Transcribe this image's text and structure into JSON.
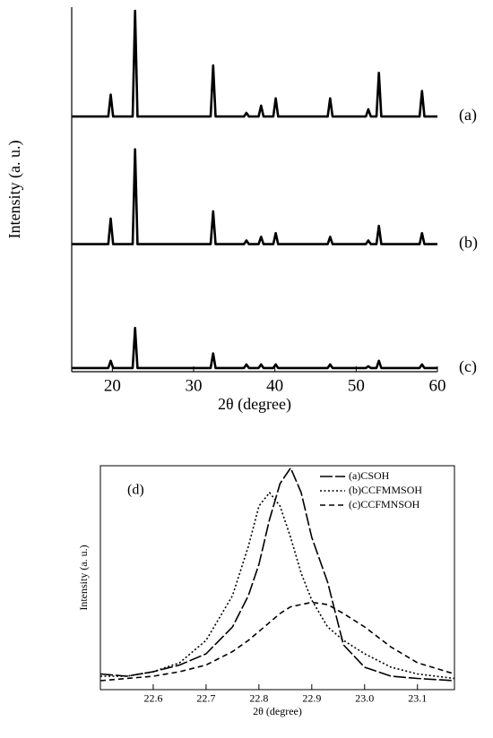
{
  "chart_data": [
    {
      "type": "line",
      "x_label": "2θ (degree)",
      "y_label": "Intensity (a. u.)",
      "x": [
        15,
        19.5,
        19.8,
        20.1,
        22.5,
        22.8,
        23.1,
        32.1,
        32.4,
        32.7,
        36.2,
        36.5,
        36.8,
        38.0,
        38.3,
        38.6,
        39.8,
        40.1,
        40.4,
        46.5,
        46.8,
        47.1,
        51.2,
        51.5,
        51.8,
        52.5,
        52.8,
        53.1,
        57.8,
        58.1,
        58.4,
        60
      ],
      "series": [
        {
          "name": "(a)",
          "color": "#000000",
          "values": [
            70,
            70,
            76,
            70,
            70,
            99,
            70,
            70,
            84,
            70,
            70,
            71,
            70,
            70,
            73,
            70,
            70,
            75,
            70,
            70,
            75,
            70,
            70,
            72,
            70,
            70,
            82,
            70,
            70,
            77,
            70,
            70
          ]
        },
        {
          "name": "(b)",
          "color": "#000000",
          "values": [
            35,
            35,
            42,
            35,
            35,
            61,
            35,
            35,
            44,
            35,
            35,
            36,
            35,
            35,
            37,
            35,
            35,
            38,
            35,
            35,
            37,
            35,
            35,
            36,
            35,
            35,
            40,
            35,
            35,
            38,
            35,
            35
          ]
        },
        {
          "name": "(c)",
          "color": "#000000",
          "values": [
            1,
            1,
            3,
            1,
            1,
            12,
            1,
            1,
            5,
            1,
            1,
            2,
            1,
            1,
            2,
            1,
            1,
            2,
            1,
            1,
            2,
            1,
            1,
            1.5,
            1,
            1,
            3,
            1,
            1,
            2,
            1,
            1
          ]
        }
      ],
      "xlim": [
        15,
        60
      ],
      "xticks": [
        20,
        30,
        40,
        50,
        60
      ],
      "ylim": [
        0,
        100
      ]
    },
    {
      "type": "line",
      "x_label": "2θ (degree)",
      "y_label": "Intensity (a. u.)",
      "annotation": "(d)",
      "x": [
        22.5,
        22.55,
        22.6,
        22.65,
        22.7,
        22.75,
        22.78,
        22.8,
        22.82,
        22.84,
        22.86,
        22.88,
        22.9,
        22.93,
        22.96,
        23.0,
        23.05,
        23.1,
        23.17
      ],
      "series": [
        {
          "name": "(a)CSOH",
          "color": "#000000",
          "dash": "solid",
          "values": [
            7,
            6,
            8,
            11,
            16,
            28,
            42,
            56,
            76,
            92,
            99,
            88,
            68,
            48,
            20,
            10,
            6,
            5,
            4
          ]
        },
        {
          "name": "(b)CCFMMSOH",
          "color": "#000000",
          "dash": "dotted",
          "values": [
            6,
            6,
            8,
            12,
            22,
            42,
            64,
            82,
            88,
            82,
            68,
            52,
            40,
            28,
            22,
            16,
            10,
            7,
            5
          ]
        },
        {
          "name": "(c)CCFMNSOH",
          "color": "#000000",
          "dash": "dashed",
          "values": [
            4,
            5,
            6,
            8,
            11,
            17,
            22,
            26,
            30,
            34,
            37,
            38,
            39,
            38,
            34,
            28,
            19,
            12,
            7
          ]
        }
      ],
      "xlim": [
        22.5,
        23.17
      ],
      "xticks": [
        22.6,
        22.7,
        22.8,
        22.9,
        {
          "value": 23.0,
          "label": "23.0"
        },
        23.1
      ],
      "ylim": [
        0,
        100
      ],
      "legend": "upper right"
    }
  ]
}
